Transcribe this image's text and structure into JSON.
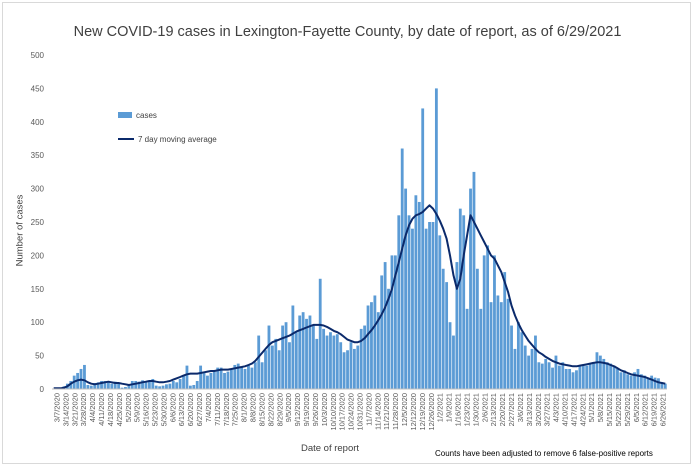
{
  "chart_data": {
    "type": "bar",
    "title": "New COVID-19 cases in Lexington-Fayette County, by date of report, as of 6/29/2021",
    "xlabel": "Date of report",
    "ylabel": "Number of cases",
    "footnote": "Counts have been adjusted to remove 6 false-positive reports",
    "ylim": [
      0,
      500
    ],
    "yticks": [
      0,
      50,
      100,
      150,
      200,
      250,
      300,
      350,
      400,
      450,
      500
    ],
    "grid": false,
    "legend_position": "upper-left",
    "colors": {
      "cases": "#5b9bd5",
      "moving_average": "#0b2a6b"
    },
    "x_tick_labels": [
      "3/7/2020",
      "3/14/2020",
      "3/21/2020",
      "3/28/2020",
      "4/4/2020",
      "4/11/2020",
      "4/18/2020",
      "4/25/2020",
      "5/2/2020",
      "5/9/2020",
      "5/16/2020",
      "5/23/2020",
      "5/30/2020",
      "6/6/2020",
      "6/13/2020",
      "6/20/2020",
      "6/27/2020",
      "7/4/2020",
      "7/11/2020",
      "7/18/2020",
      "7/25/2020",
      "8/1/2020",
      "8/8/2020",
      "8/15/2020",
      "8/22/2020",
      "8/29/2020",
      "9/5/2020",
      "9/12/2020",
      "9/19/2020",
      "9/26/2020",
      "10/3/2020",
      "10/10/2020",
      "10/17/2020",
      "10/24/2020",
      "10/31/2020",
      "11/7/2020",
      "11/14/2020",
      "11/21/2020",
      "11/28/2020",
      "12/5/2020",
      "12/12/2020",
      "12/19/2020",
      "12/26/2020",
      "1/2/2021",
      "1/9/2021",
      "1/16/2021",
      "1/23/2021",
      "1/30/2021",
      "2/6/2021",
      "2/13/2021",
      "2/20/2021",
      "2/27/2021",
      "3/6/2021",
      "3/13/2021",
      "3/20/2021",
      "3/27/2021",
      "4/3/2021",
      "4/10/2021",
      "4/17/2021",
      "4/24/2021",
      "5/1/2021",
      "5/8/2021",
      "5/15/2021",
      "5/22/2021",
      "5/29/2021",
      "6/5/2021",
      "6/12/2021",
      "6/19/2021",
      "6/26/2021"
    ],
    "series": [
      {
        "name": "cases",
        "type": "bar",
        "values": [
          0,
          1,
          2,
          4,
          8,
          12,
          20,
          24,
          30,
          36,
          6,
          5,
          9,
          10,
          12,
          12,
          12,
          8,
          11,
          9,
          2,
          3,
          5,
          12,
          12,
          11,
          13,
          10,
          12,
          15,
          5,
          4,
          5,
          7,
          8,
          12,
          10,
          15,
          20,
          35,
          5,
          6,
          12,
          35,
          26,
          20,
          24,
          28,
          32,
          32,
          24,
          26,
          30,
          36,
          38,
          33,
          30,
          35,
          32,
          40,
          80,
          40,
          58,
          95,
          65,
          75,
          58,
          95,
          100,
          70,
          125,
          85,
          110,
          115,
          105,
          110,
          95,
          75,
          165,
          90,
          80,
          85,
          80,
          82,
          70,
          55,
          58,
          70,
          60,
          65,
          90,
          95,
          125,
          130,
          140,
          115,
          170,
          190,
          150,
          200,
          200,
          260,
          360,
          300,
          260,
          240,
          290,
          280,
          420,
          240,
          250,
          250,
          450,
          230,
          180,
          160,
          100,
          80,
          190,
          270,
          260,
          120,
          300,
          325,
          180,
          120,
          200,
          215,
          130,
          200,
          140,
          130,
          175,
          135,
          95,
          60,
          100,
          85,
          65,
          50,
          60,
          80,
          40,
          38,
          45,
          40,
          32,
          50,
          35,
          40,
          30,
          30,
          25,
          28,
          35,
          37,
          35,
          38,
          40,
          55,
          50,
          45,
          40,
          38,
          35,
          30,
          25,
          28,
          22,
          20,
          25,
          30,
          22,
          20,
          15,
          20,
          17,
          16,
          10,
          8
        ]
      },
      {
        "name": "7 day moving average",
        "type": "line",
        "values": [
          1,
          1,
          1,
          2,
          4,
          8,
          11,
          13,
          14,
          13,
          10,
          8,
          7,
          8,
          9,
          10,
          11,
          10,
          9,
          9,
          8,
          7,
          6,
          7,
          8,
          9,
          10,
          11,
          12,
          12,
          11,
          10,
          10,
          11,
          12,
          14,
          16,
          18,
          20,
          22,
          23,
          23,
          23,
          24,
          25,
          26,
          27,
          27,
          28,
          29,
          29,
          29,
          30,
          31,
          32,
          33,
          34,
          36,
          38,
          42,
          48,
          54,
          60,
          66,
          70,
          72,
          74,
          76,
          78,
          80,
          83,
          86,
          88,
          90,
          92,
          94,
          96,
          96,
          96,
          95,
          93,
          90,
          87,
          85,
          82,
          78,
          74,
          72,
          70,
          70,
          72,
          76,
          82,
          88,
          95,
          103,
          112,
          122,
          135,
          150,
          170,
          190,
          210,
          230,
          245,
          255,
          260,
          262,
          265,
          270,
          275,
          270,
          262,
          252,
          240,
          225,
          200,
          170,
          150,
          165,
          200,
          230,
          260,
          250,
          240,
          230,
          220,
          210,
          200,
          195,
          185,
          175,
          160,
          145,
          125,
          110,
          98,
          88,
          80,
          72,
          66,
          60,
          55,
          52,
          48,
          45,
          42,
          40,
          38,
          37,
          36,
          35,
          34,
          34,
          35,
          36,
          37,
          38,
          39,
          40,
          40,
          39,
          38,
          36,
          34,
          31,
          28,
          26,
          24,
          22,
          21,
          20,
          19,
          18,
          16,
          14,
          12,
          10,
          9,
          8
        ]
      }
    ]
  }
}
